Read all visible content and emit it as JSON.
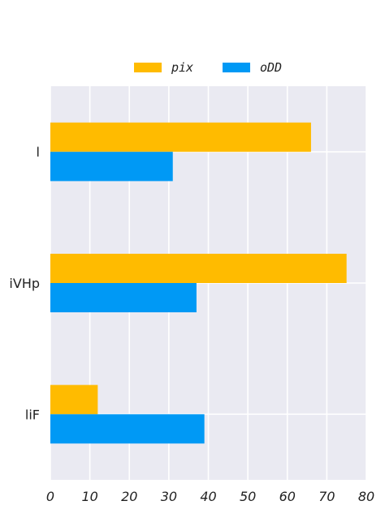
{
  "chart_data": {
    "type": "bar",
    "orientation": "horizontal",
    "categories": [
      "l",
      "iVHp",
      "liF"
    ],
    "series": [
      {
        "name": "pix",
        "values": [
          66,
          75,
          12
        ],
        "color": "#FFBB00"
      },
      {
        "name": "oDD",
        "values": [
          31,
          37,
          39
        ],
        "color": "#0099F5"
      }
    ],
    "x_ticks": [
      "0",
      "10",
      "20",
      "30",
      "40",
      "50",
      "60",
      "70",
      "80"
    ],
    "xlim": [
      0,
      80
    ],
    "xlabel": "",
    "ylabel": "",
    "title": "",
    "grid": true,
    "legend": "top-center",
    "colors": {
      "background": "#EAEAF2",
      "grid": "#FFFFFF"
    }
  }
}
